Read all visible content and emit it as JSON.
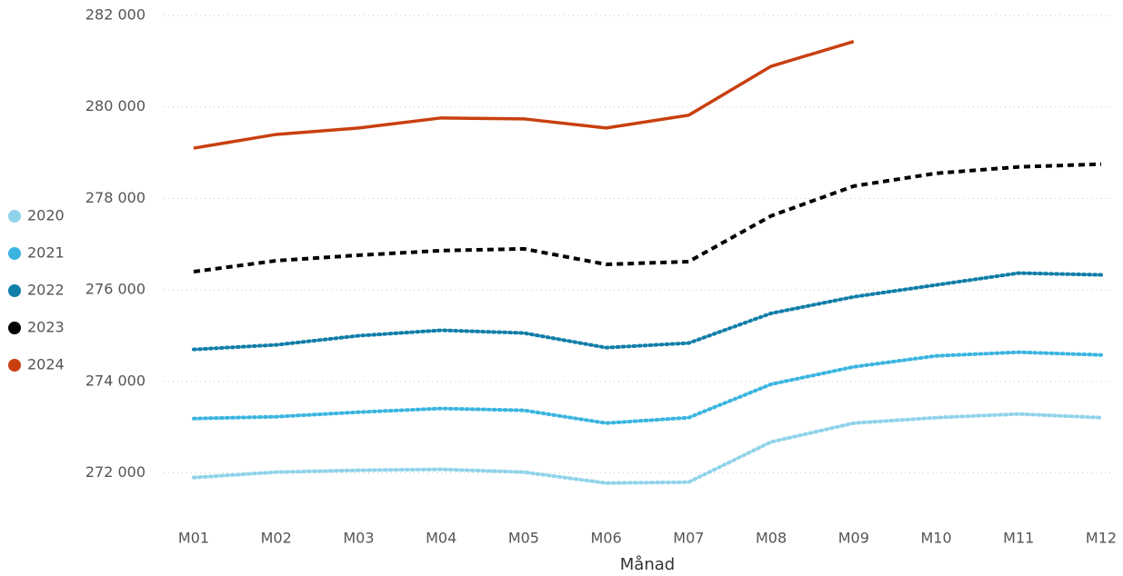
{
  "chart_data": {
    "type": "line",
    "x_label": "Månad",
    "categories": [
      "M01",
      "M02",
      "M03",
      "M04",
      "M05",
      "M06",
      "M07",
      "M08",
      "M09",
      "M10",
      "M11",
      "M12"
    ],
    "series": [
      {
        "name": "2020",
        "color": "#8fd3ea",
        "style": "dotted",
        "values": [
          271900,
          272020,
          272060,
          272080,
          272020,
          271780,
          271800,
          272680,
          273090,
          273210,
          273290,
          273210
        ]
      },
      {
        "name": "2021",
        "color": "#3bb5e0",
        "style": "dotted",
        "values": [
          273190,
          273230,
          273330,
          273410,
          273370,
          273090,
          273210,
          273940,
          274320,
          274560,
          274640,
          274580
        ]
      },
      {
        "name": "2022",
        "color": "#117ea8",
        "style": "dotted",
        "values": [
          274700,
          274800,
          275000,
          275120,
          275060,
          274740,
          274840,
          275490,
          275850,
          276110,
          276370,
          276330
        ]
      },
      {
        "name": "2023",
        "color": "#000000",
        "style": "dashed",
        "values": [
          276400,
          276640,
          276760,
          276860,
          276900,
          276560,
          276620,
          277620,
          278270,
          278550,
          278690,
          278750
        ]
      },
      {
        "name": "2024",
        "color": "#c8400f",
        "style": "solid",
        "values": [
          279100,
          279400,
          279540,
          279760,
          279740,
          279540,
          279820,
          280890,
          281430,
          null,
          null,
          null
        ]
      }
    ],
    "ylim": [
      271000,
      282000
    ],
    "yticks": [
      {
        "value": 272000,
        "label": "272 000"
      },
      {
        "value": 274000,
        "label": "274 000"
      },
      {
        "value": 276000,
        "label": "276 000"
      },
      {
        "value": 278000,
        "label": "278 000"
      },
      {
        "value": 280000,
        "label": "280 000"
      },
      {
        "value": 282000,
        "label": "282 000"
      }
    ],
    "grid": true,
    "legend": "left"
  }
}
